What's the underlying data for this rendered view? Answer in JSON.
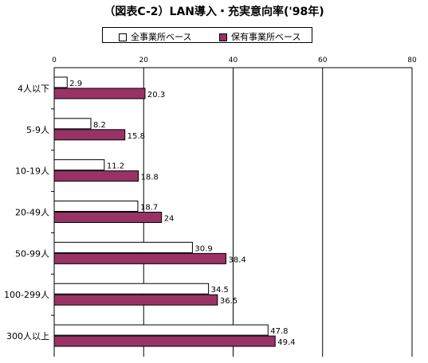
{
  "title": "（図表C-2）LAN導入・充実意向率('98年)",
  "chart_data": {
    "type": "bar",
    "orientation": "horizontal",
    "categories": [
      "4人以下",
      "5-9人",
      "10-19人",
      "20-49人",
      "50-99人",
      "100-299人",
      "300人以上"
    ],
    "series": [
      {
        "name": "全事業所ベース",
        "values": [
          2.9,
          8.2,
          11.2,
          18.7,
          30.9,
          34.5,
          47.8
        ],
        "color": "#ffffff"
      },
      {
        "name": "保有事業所ベース",
        "values": [
          20.3,
          15.8,
          18.8,
          24,
          38.4,
          36.5,
          49.4
        ],
        "color": "#993366"
      }
    ],
    "xlim": [
      0,
      80
    ],
    "xticks": [
      0,
      20,
      40,
      60,
      80
    ],
    "grid": true,
    "legend_position": "top"
  }
}
